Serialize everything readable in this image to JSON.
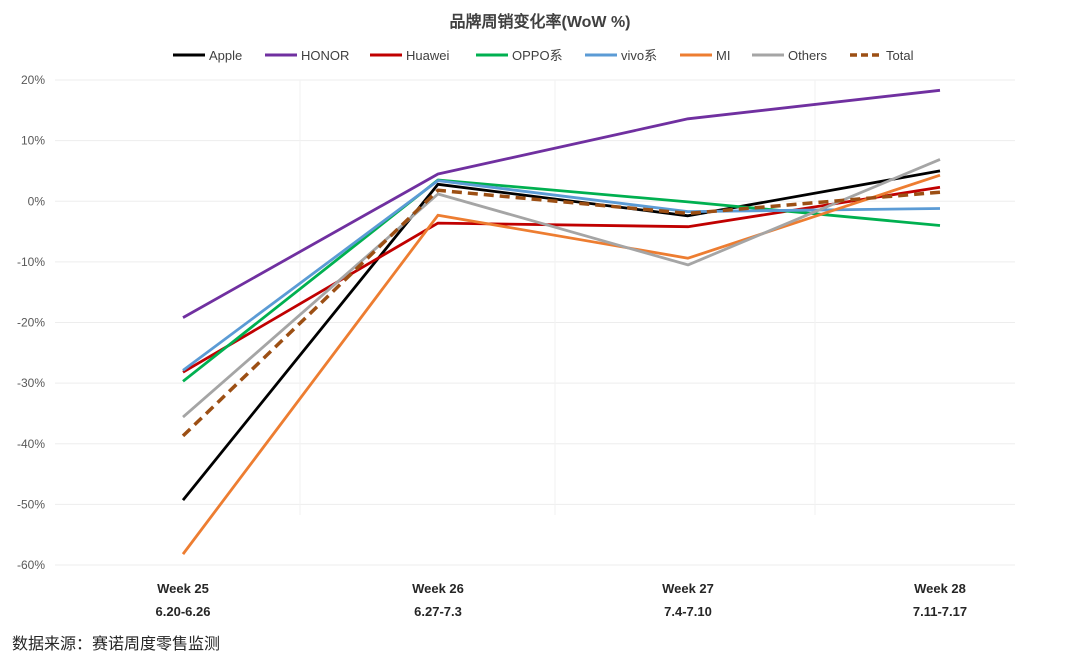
{
  "chart_data": {
    "type": "line",
    "title": "品牌周销变化率(WoW %)",
    "categories": [
      "Week 25",
      "Week 26",
      "Week 27",
      "Week 28"
    ],
    "category_dates": [
      "6.20-6.26",
      "6.27-7.3",
      "7.4-7.10",
      "7.11-7.17"
    ],
    "y_unit": "%",
    "ylim": [
      -60,
      20
    ],
    "yticks": [
      20,
      10,
      0,
      -10,
      -20,
      -30,
      -40,
      -50,
      -60
    ],
    "ytick_labels": [
      "20%",
      "10%",
      "0%",
      "-10%",
      "-20%",
      "-30%",
      "-40%",
      "-50%",
      "-60%"
    ],
    "grid": true,
    "legend_position": "top",
    "series": [
      {
        "name": "Apple",
        "color": "#000000",
        "dashed": false,
        "values": [
          -49.3,
          2.8,
          -2.4,
          5.0
        ]
      },
      {
        "name": "HONOR",
        "color": "#7030A0",
        "dashed": false,
        "values": [
          -19.2,
          4.5,
          13.6,
          18.3
        ]
      },
      {
        "name": "Huawei",
        "color": "#C00000",
        "dashed": false,
        "values": [
          -28.2,
          -3.6,
          -4.2,
          2.3
        ]
      },
      {
        "name": "OPPO系",
        "color": "#00B050",
        "dashed": false,
        "values": [
          -29.7,
          3.5,
          -0.1,
          -4.0
        ]
      },
      {
        "name": "vivo系",
        "color": "#5B9BD5",
        "dashed": false,
        "values": [
          -27.9,
          3.4,
          -1.7,
          -1.2
        ]
      },
      {
        "name": "MI",
        "color": "#ED7D31",
        "dashed": false,
        "values": [
          -58.2,
          -2.3,
          -9.4,
          4.3
        ]
      },
      {
        "name": "Others",
        "color": "#A5A5A5",
        "dashed": false,
        "values": [
          -35.6,
          1.2,
          -10.5,
          6.9
        ]
      },
      {
        "name": "Total",
        "color": "#9C4F14",
        "dashed": true,
        "values": [
          -38.7,
          1.8,
          -2.0,
          1.5
        ]
      }
    ]
  },
  "source_note": "数据来源：赛诺周度零售监测"
}
